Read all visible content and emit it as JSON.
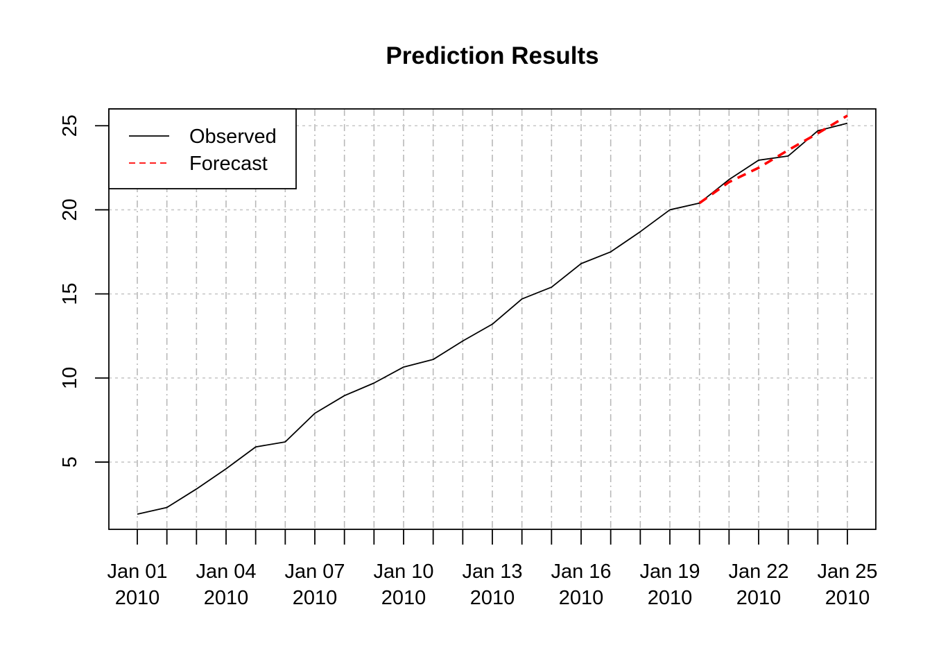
{
  "chart_data": {
    "type": "line",
    "title": "Prediction Results",
    "xlabel": "",
    "ylabel": "",
    "x": [
      "2010-01-01",
      "2010-01-02",
      "2010-01-03",
      "2010-01-04",
      "2010-01-05",
      "2010-01-06",
      "2010-01-07",
      "2010-01-08",
      "2010-01-09",
      "2010-01-10",
      "2010-01-11",
      "2010-01-12",
      "2010-01-13",
      "2010-01-14",
      "2010-01-15",
      "2010-01-16",
      "2010-01-17",
      "2010-01-18",
      "2010-01-19",
      "2010-01-20",
      "2010-01-21",
      "2010-01-22",
      "2010-01-23",
      "2010-01-24",
      "2010-01-25"
    ],
    "x_tick_labels": [
      {
        "date": "2010-01-01",
        "line1": "Jan 01",
        "line2": "2010"
      },
      {
        "date": "2010-01-04",
        "line1": "Jan 04",
        "line2": "2010"
      },
      {
        "date": "2010-01-07",
        "line1": "Jan 07",
        "line2": "2010"
      },
      {
        "date": "2010-01-10",
        "line1": "Jan 10",
        "line2": "2010"
      },
      {
        "date": "2010-01-13",
        "line1": "Jan 13",
        "line2": "2010"
      },
      {
        "date": "2010-01-16",
        "line1": "Jan 16",
        "line2": "2010"
      },
      {
        "date": "2010-01-19",
        "line1": "Jan 19",
        "line2": "2010"
      },
      {
        "date": "2010-01-22",
        "line1": "Jan 22",
        "line2": "2010"
      },
      {
        "date": "2010-01-25",
        "line1": "Jan 25",
        "line2": "2010"
      }
    ],
    "y_ticks": [
      5,
      10,
      15,
      20,
      25
    ],
    "ylim": [
      1,
      26
    ],
    "xlim": [
      "2010-01-01",
      "2010-01-25"
    ],
    "grid": true,
    "legend_position": "top-left",
    "series": [
      {
        "name": "Observed",
        "color": "#000000",
        "style": "solid",
        "x": [
          "2010-01-01",
          "2010-01-02",
          "2010-01-03",
          "2010-01-04",
          "2010-01-05",
          "2010-01-06",
          "2010-01-07",
          "2010-01-08",
          "2010-01-09",
          "2010-01-10",
          "2010-01-11",
          "2010-01-12",
          "2010-01-13",
          "2010-01-14",
          "2010-01-15",
          "2010-01-16",
          "2010-01-17",
          "2010-01-18",
          "2010-01-19",
          "2010-01-20",
          "2010-01-21",
          "2010-01-22",
          "2010-01-23",
          "2010-01-24",
          "2010-01-25"
        ],
        "values": [
          1.9,
          2.3,
          3.4,
          4.6,
          5.9,
          6.2,
          7.9,
          8.95,
          9.7,
          10.65,
          11.1,
          12.2,
          13.2,
          14.7,
          15.4,
          16.8,
          17.5,
          18.7,
          20.0,
          20.4,
          21.8,
          22.95,
          23.2,
          24.7,
          25.15
        ]
      },
      {
        "name": "Forecast",
        "color": "#ff0000",
        "style": "dashed",
        "x": [
          "2010-01-20",
          "2010-01-21",
          "2010-01-22",
          "2010-01-23",
          "2010-01-24",
          "2010-01-25"
        ],
        "values": [
          20.4,
          21.65,
          22.5,
          23.55,
          24.55,
          25.6
        ]
      }
    ]
  }
}
